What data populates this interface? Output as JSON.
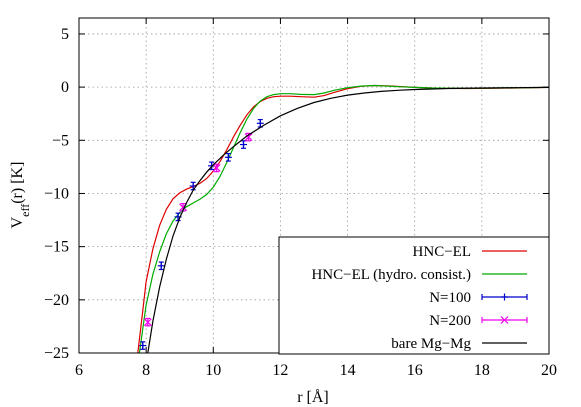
{
  "chart_data": {
    "type": "line",
    "xlabel": "r [Å]",
    "ylabel_main": "V",
    "ylabel_sub": "eff",
    "ylabel_rest": "(r) [K]",
    "xlim": [
      6,
      20
    ],
    "ylim": [
      -25,
      6.5
    ],
    "xticks": [
      6,
      8,
      10,
      12,
      14,
      16,
      18,
      20
    ],
    "yticks": [
      5,
      0,
      -5,
      -10,
      -15,
      -20,
      -25
    ],
    "grid": true,
    "legend_position": "bottom-right",
    "series": [
      {
        "name": "HNC−EL",
        "color": "#dd0000",
        "kind": "line",
        "points": [
          [
            7.75,
            -25
          ],
          [
            7.9,
            -21
          ],
          [
            8.0,
            -18.3
          ],
          [
            8.2,
            -15.2
          ],
          [
            8.4,
            -13.0
          ],
          [
            8.6,
            -11.5
          ],
          [
            8.8,
            -10.5
          ],
          [
            9.0,
            -9.95
          ],
          [
            9.2,
            -9.6
          ],
          [
            9.4,
            -9.35
          ],
          [
            9.6,
            -9.05
          ],
          [
            9.8,
            -8.6
          ],
          [
            10.0,
            -7.9
          ],
          [
            10.2,
            -7.0
          ],
          [
            10.4,
            -5.9
          ],
          [
            10.6,
            -4.7
          ],
          [
            10.8,
            -3.6
          ],
          [
            11.0,
            -2.6
          ],
          [
            11.2,
            -1.85
          ],
          [
            11.4,
            -1.35
          ],
          [
            11.6,
            -1.05
          ],
          [
            11.8,
            -0.9
          ],
          [
            12.0,
            -0.85
          ],
          [
            12.3,
            -0.85
          ],
          [
            12.6,
            -0.9
          ],
          [
            13.0,
            -0.95
          ],
          [
            13.3,
            -0.8
          ],
          [
            13.6,
            -0.5
          ],
          [
            14.0,
            -0.15
          ],
          [
            14.4,
            0.08
          ],
          [
            14.8,
            0.15
          ],
          [
            15.2,
            0.12
          ],
          [
            15.6,
            0.05
          ],
          [
            16.0,
            -0.02
          ],
          [
            16.5,
            -0.08
          ],
          [
            17.0,
            -0.12
          ],
          [
            17.5,
            -0.13
          ],
          [
            18.0,
            -0.12
          ],
          [
            18.5,
            -0.1
          ],
          [
            19.0,
            -0.08
          ],
          [
            19.5,
            -0.05
          ],
          [
            20.0,
            -0.03
          ]
        ]
      },
      {
        "name": "HNC−EL (hydro. consist.)",
        "color": "#00aa00",
        "kind": "line",
        "points": [
          [
            7.8,
            -25
          ],
          [
            8.0,
            -20.5
          ],
          [
            8.2,
            -17.6
          ],
          [
            8.4,
            -15.5
          ],
          [
            8.6,
            -13.8
          ],
          [
            8.8,
            -12.6
          ],
          [
            9.0,
            -11.8
          ],
          [
            9.2,
            -11.25
          ],
          [
            9.4,
            -10.9
          ],
          [
            9.6,
            -10.55
          ],
          [
            9.8,
            -10.1
          ],
          [
            10.0,
            -9.4
          ],
          [
            10.2,
            -8.4
          ],
          [
            10.4,
            -7.1
          ],
          [
            10.6,
            -5.7
          ],
          [
            10.8,
            -4.3
          ],
          [
            11.0,
            -3.0
          ],
          [
            11.2,
            -2.0
          ],
          [
            11.4,
            -1.3
          ],
          [
            11.6,
            -0.9
          ],
          [
            11.8,
            -0.7
          ],
          [
            12.0,
            -0.62
          ],
          [
            12.3,
            -0.62
          ],
          [
            12.6,
            -0.68
          ],
          [
            13.0,
            -0.7
          ],
          [
            13.3,
            -0.55
          ],
          [
            13.6,
            -0.3
          ],
          [
            14.0,
            -0.05
          ],
          [
            14.4,
            0.1
          ],
          [
            14.8,
            0.15
          ],
          [
            15.2,
            0.1
          ],
          [
            15.6,
            0.03
          ],
          [
            16.0,
            -0.03
          ],
          [
            16.5,
            -0.08
          ],
          [
            17.0,
            -0.1
          ],
          [
            17.5,
            -0.11
          ],
          [
            18.0,
            -0.1
          ],
          [
            18.5,
            -0.08
          ],
          [
            19.0,
            -0.06
          ],
          [
            19.5,
            -0.04
          ],
          [
            20.0,
            -0.02
          ]
        ]
      },
      {
        "name": "N=100",
        "color": "#0000cc",
        "kind": "errorbar",
        "marker": "plus",
        "points": [
          [
            7.9,
            -24.3,
            0.35
          ],
          [
            8.45,
            -16.8,
            0.35
          ],
          [
            8.95,
            -12.2,
            0.35
          ],
          [
            9.4,
            -9.3,
            0.35
          ],
          [
            9.95,
            -7.4,
            0.35
          ],
          [
            10.45,
            -6.6,
            0.35
          ],
          [
            10.9,
            -5.4,
            0.35
          ],
          [
            11.4,
            -3.4,
            0.35
          ]
        ]
      },
      {
        "name": "N=200",
        "color": "#ee00ee",
        "kind": "errorbar",
        "marker": "x",
        "points": [
          [
            8.05,
            -22.1,
            0.35
          ],
          [
            9.1,
            -11.3,
            0.35
          ],
          [
            10.1,
            -7.6,
            0.35
          ],
          [
            11.05,
            -4.7,
            0.35
          ]
        ]
      },
      {
        "name": "bare Mg−Mg",
        "color": "#000000",
        "kind": "line",
        "points": [
          [
            8.05,
            -25
          ],
          [
            8.2,
            -22.0
          ],
          [
            8.4,
            -18.8
          ],
          [
            8.6,
            -16.2
          ],
          [
            8.8,
            -14.0
          ],
          [
            9.0,
            -12.3
          ],
          [
            9.2,
            -10.9
          ],
          [
            9.4,
            -9.7
          ],
          [
            9.6,
            -8.8
          ],
          [
            9.8,
            -8.0
          ],
          [
            10.0,
            -7.3
          ],
          [
            10.3,
            -6.4
          ],
          [
            10.6,
            -5.6
          ],
          [
            11.0,
            -4.6
          ],
          [
            11.5,
            -3.6
          ],
          [
            12.0,
            -2.7
          ],
          [
            12.5,
            -2.0
          ],
          [
            13.0,
            -1.45
          ],
          [
            13.5,
            -1.05
          ],
          [
            14.0,
            -0.75
          ],
          [
            14.5,
            -0.55
          ],
          [
            15.0,
            -0.4
          ],
          [
            15.5,
            -0.3
          ],
          [
            16.0,
            -0.22
          ],
          [
            17.0,
            -0.13
          ],
          [
            18.0,
            -0.08
          ],
          [
            19.0,
            -0.05
          ],
          [
            20.0,
            -0.03
          ]
        ]
      }
    ]
  }
}
